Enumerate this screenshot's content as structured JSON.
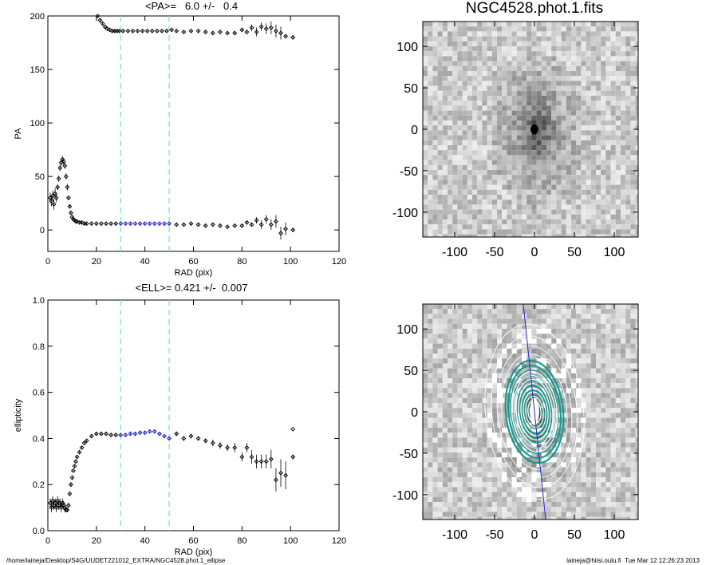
{
  "footer": {
    "left": "/home/laineja/Desktop/S4G/UUDET221012_EXTRA/NGC4528.phot.1_ellipse",
    "right": "laineja@hiisi.oulu.fi  Tue Mar 12 12:26:23 2013"
  },
  "colors": {
    "marker": "#000000",
    "fit_range": "#1414c8",
    "range_line": "#6fe0e0",
    "contour": "#ffffff",
    "pa_line": "#2a2acc",
    "contour_fill": "#1a9a8f"
  },
  "chart_data": [
    {
      "type": "scatter",
      "title": "<PA>=   6.0 +/-   0.4",
      "xlabel": "RAD (pix)",
      "ylabel": "PA",
      "xlim": [
        0,
        120
      ],
      "ylim": [
        -20,
        200
      ],
      "xticks": [
        0,
        20,
        40,
        60,
        80,
        100,
        120
      ],
      "yticks": [
        0,
        50,
        100,
        150,
        200
      ],
      "vlines": [
        30,
        50
      ],
      "fit_range": [
        30,
        50
      ],
      "x": [
        1.0,
        1.5,
        2.0,
        2.5,
        3.0,
        3.5,
        4.0,
        4.5,
        5.0,
        5.5,
        6.0,
        6.5,
        7.0,
        7.5,
        8.0,
        8.5,
        9.0,
        9.5,
        10.0,
        10.5,
        11.0,
        11.5,
        12.0,
        13.0,
        14.0,
        15.0,
        16.0,
        18.0,
        20.0,
        22.0,
        24.0,
        26.0,
        28.0,
        30.0,
        32.0,
        34.0,
        36.0,
        38.0,
        40.0,
        42.0,
        44.0,
        46.0,
        48.0,
        50.0,
        53.0,
        56.0,
        59.0,
        62.0,
        65.0,
        68.0,
        71.0,
        74.0,
        77.0,
        80.0,
        82.0,
        84.0,
        86.0,
        88.0,
        90.0,
        92.0,
        94.0,
        96.0,
        98.0,
        101.0
      ],
      "pa_low": [
        30,
        27,
        32,
        24,
        34,
        30,
        40,
        48,
        58,
        63,
        66,
        64,
        60,
        50,
        40,
        30,
        22,
        16,
        12,
        10,
        9,
        8,
        8,
        7,
        7,
        6,
        6,
        6,
        6,
        6,
        6,
        6,
        6,
        6,
        6,
        6,
        6,
        6,
        6,
        6,
        6,
        6,
        6,
        6,
        5,
        5,
        6,
        5,
        4,
        5,
        4,
        3,
        4,
        4,
        7,
        5,
        9,
        5,
        10,
        5,
        8,
        -3,
        1,
        0
      ],
      "pa_low_err": [
        5,
        5,
        5,
        5,
        5,
        4,
        3,
        3,
        3,
        3,
        3,
        3,
        3,
        3,
        3,
        2,
        2,
        2,
        1,
        1,
        1,
        1,
        1,
        1,
        1,
        1,
        1,
        1,
        1,
        1,
        1,
        1,
        1,
        1,
        1,
        1,
        1,
        1,
        1,
        1,
        1,
        1,
        1,
        1,
        1,
        1,
        1,
        1,
        1,
        1,
        1,
        1,
        1,
        2,
        2,
        2,
        3,
        4,
        4,
        5,
        6,
        6,
        6,
        2
      ],
      "pa_high_x": [
        20.5,
        21.5,
        22.5,
        23.5,
        24.5,
        25.5,
        26.5,
        27.5,
        28.5,
        29.5,
        31,
        33,
        35,
        37,
        39,
        41,
        43,
        45,
        47,
        49,
        51,
        53,
        56,
        59,
        62,
        65,
        68,
        71,
        74,
        77,
        80,
        82,
        84,
        86,
        88,
        90,
        92,
        94,
        96,
        98,
        101
      ],
      "pa_high": [
        200,
        196,
        193,
        190,
        188,
        187,
        186,
        186,
        186,
        186,
        186,
        186,
        186,
        186,
        186,
        186,
        186,
        186,
        186,
        186,
        187,
        186,
        185,
        186,
        186,
        185,
        184,
        185,
        184,
        184,
        187,
        185,
        189,
        185,
        190,
        188,
        189,
        186,
        184,
        181,
        180
      ],
      "pa_high_err": [
        1,
        1,
        1,
        1,
        1,
        1,
        1,
        1,
        1,
        1,
        1,
        1,
        1,
        1,
        1,
        1,
        1,
        1,
        1,
        1,
        1,
        1,
        1,
        1,
        1,
        1,
        1,
        1,
        1,
        2,
        2,
        2,
        3,
        4,
        4,
        5,
        6,
        6,
        6,
        2,
        2
      ]
    },
    {
      "type": "scatter",
      "title": "<ELL>= 0.421 +/-  0.007",
      "xlabel": "RAD (pix)",
      "ylabel": "ellipticity",
      "xlim": [
        0,
        120
      ],
      "ylim": [
        0,
        1.0
      ],
      "xticks": [
        0,
        20,
        40,
        60,
        80,
        100,
        120
      ],
      "yticks": [
        0.0,
        0.2,
        0.4,
        0.6,
        0.8,
        1.0
      ],
      "vlines": [
        30,
        50
      ],
      "fit_range": [
        30,
        50
      ],
      "x": [
        1.0,
        1.5,
        2.0,
        2.5,
        3.0,
        3.5,
        4.0,
        4.5,
        5.0,
        5.5,
        6.0,
        6.5,
        7.0,
        7.5,
        8.0,
        8.5,
        9.0,
        9.5,
        10.0,
        10.5,
        11.0,
        11.5,
        12.0,
        13.0,
        14.0,
        15.0,
        16.0,
        18.0,
        20.0,
        22.0,
        24.0,
        26.0,
        28.0,
        30.0,
        32.0,
        34.0,
        36.0,
        38.0,
        40.0,
        42.0,
        44.0,
        46.0,
        48.0,
        50.0,
        53.0,
        56.0,
        59.0,
        62.0,
        65.0,
        68.0,
        71.0,
        74.0,
        77.0,
        80.0,
        82.0,
        84.0,
        86.0,
        88.0,
        90.0,
        92.0,
        94.0,
        96.0,
        98.0,
        101.0
      ],
      "y": [
        0.12,
        0.1,
        0.13,
        0.11,
        0.12,
        0.1,
        0.13,
        0.11,
        0.12,
        0.1,
        0.12,
        0.11,
        0.1,
        0.09,
        0.09,
        0.11,
        0.16,
        0.2,
        0.23,
        0.26,
        0.28,
        0.3,
        0.32,
        0.34,
        0.36,
        0.38,
        0.39,
        0.41,
        0.42,
        0.42,
        0.42,
        0.415,
        0.415,
        0.415,
        0.415,
        0.42,
        0.42,
        0.425,
        0.425,
        0.43,
        0.43,
        0.42,
        0.41,
        0.4,
        0.42,
        0.4,
        0.41,
        0.4,
        0.39,
        0.38,
        0.37,
        0.36,
        0.36,
        0.32,
        0.36,
        0.32,
        0.3,
        0.3,
        0.3,
        0.31,
        0.22,
        0.25,
        0.24,
        0.32
      ],
      "yerr": [
        0.02,
        0.02,
        0.02,
        0.02,
        0.02,
        0.02,
        0.02,
        0.02,
        0.02,
        0.02,
        0.02,
        0.02,
        0.02,
        0.01,
        0.01,
        0.01,
        0.01,
        0.01,
        0.01,
        0.005,
        0.005,
        0.005,
        0.005,
        0.005,
        0.005,
        0.005,
        0.005,
        0.005,
        0.005,
        0.005,
        0.005,
        0.005,
        0.005,
        0.005,
        0.005,
        0.005,
        0.005,
        0.005,
        0.005,
        0.005,
        0.005,
        0.005,
        0.005,
        0.005,
        0.01,
        0.01,
        0.01,
        0.01,
        0.01,
        0.015,
        0.015,
        0.015,
        0.02,
        0.02,
        0.02,
        0.03,
        0.03,
        0.03,
        0.03,
        0.04,
        0.05,
        0.06,
        0.06,
        0.01
      ],
      "outlier": {
        "x": 101,
        "y": 0.44
      }
    },
    {
      "type": "heatmap",
      "title": "NGC4528.phot.1.fits",
      "xlim": [
        -140,
        130
      ],
      "ylim": [
        -130,
        130
      ],
      "xticks": [
        -100,
        -50,
        0,
        50,
        100
      ],
      "yticks": [
        -100,
        -50,
        0,
        50,
        100
      ],
      "center": [
        0,
        0
      ],
      "ellipticity": 0.42,
      "pa": 6
    },
    {
      "type": "heatmap",
      "title": "",
      "xlim": [
        -140,
        130
      ],
      "ylim": [
        -130,
        130
      ],
      "xticks": [
        -100,
        -50,
        0,
        50,
        100
      ],
      "yticks": [
        -100,
        -50,
        0,
        50,
        100
      ],
      "center": [
        0,
        0
      ],
      "contour_semi_major": [
        8,
        14,
        20,
        26,
        32,
        38,
        44,
        50,
        56,
        62,
        70,
        80,
        92,
        106
      ],
      "ellipticity": 0.42,
      "pa": 6
    }
  ]
}
